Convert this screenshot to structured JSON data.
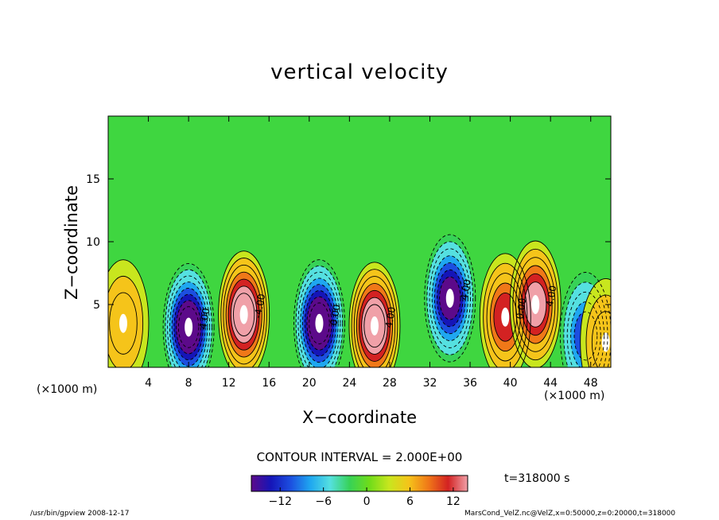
{
  "chart_data": {
    "type": "heatmap",
    "title": "vertical velocity",
    "xlabel": "X−coordinate",
    "ylabel": "Z−coordinate",
    "x_unit": "(×1000 m)",
    "x_ticks": [
      4,
      8,
      12,
      16,
      20,
      24,
      28,
      32,
      36,
      40,
      44,
      48
    ],
    "y_ticks": [
      5,
      10,
      15
    ],
    "xlim": [
      0,
      50
    ],
    "ylim": [
      0,
      20
    ],
    "contour_interval": "CONTOUR INTERVAL = 2.000E+00",
    "contour_labels": [
      "4.00",
      "-4.00",
      "0.00",
      "4.00",
      "4.00",
      "0.00",
      "4.00"
    ],
    "colorbar": {
      "ticks": [
        "−12",
        "−6",
        "0",
        "6",
        "12"
      ],
      "tick_values": [
        -12,
        -6,
        0,
        6,
        12
      ],
      "range": [
        -16,
        14
      ]
    },
    "cells": [
      {
        "x": 1.5,
        "z": 3.5,
        "value": 6
      },
      {
        "x": 8,
        "z": 3.2,
        "value": -15
      },
      {
        "x": 13.5,
        "z": 4.2,
        "value": 14
      },
      {
        "x": 21,
        "z": 3.5,
        "value": -16
      },
      {
        "x": 26.5,
        "z": 3.3,
        "value": 14
      },
      {
        "x": 34,
        "z": 5.5,
        "value": -14
      },
      {
        "x": 39.5,
        "z": 4,
        "value": 10
      },
      {
        "x": 42.5,
        "z": 5,
        "value": 12
      },
      {
        "x": 47.5,
        "z": 2.5,
        "value": -10
      },
      {
        "x": 49.5,
        "z": 2,
        "value": 6
      }
    ]
  },
  "annotations": {
    "time": "t=318000 s",
    "footer_left": "/usr/bin/gpview   2008-12-17",
    "footer_right": "MarsCond_VelZ.nc@VelZ,x=0:50000,z=0:20000,t=318000"
  },
  "colors": {
    "scale": [
      "#5c0a8a",
      "#1515b8",
      "#1c4fe0",
      "#1fa7f0",
      "#55e0e0",
      "#37d257",
      "#6fdc1a",
      "#c8e61e",
      "#f5c41a",
      "#f07818",
      "#d32222",
      "#f0a0a8"
    ],
    "background": "#3fd640"
  }
}
